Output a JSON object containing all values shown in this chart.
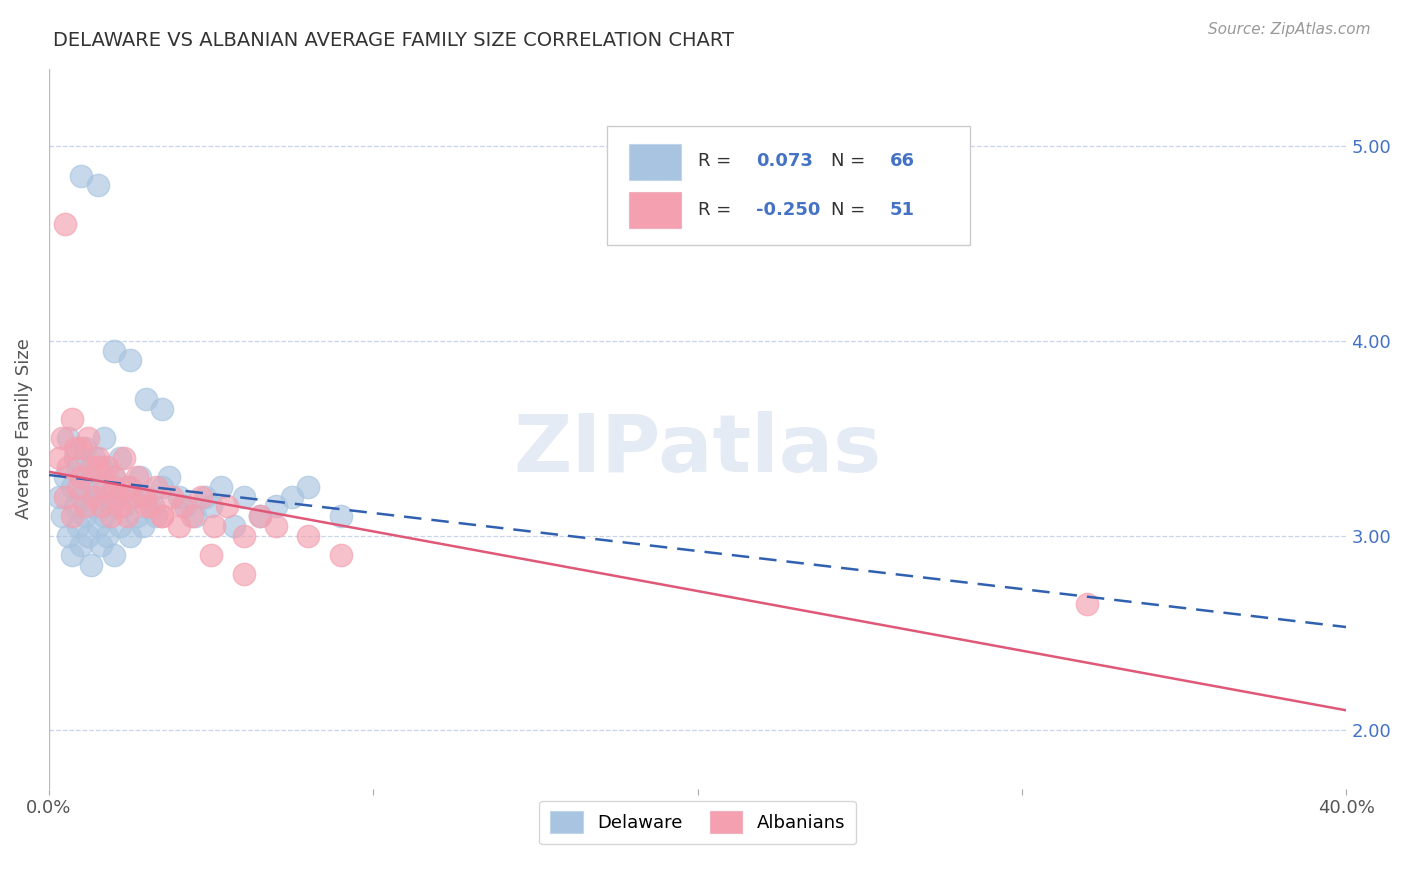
{
  "title": "DELAWARE VS ALBANIAN AVERAGE FAMILY SIZE CORRELATION CHART",
  "source": "Source: ZipAtlas.com",
  "ylabel": "Average Family Size",
  "xlim": [
    0.0,
    0.4
  ],
  "ylim": [
    1.7,
    5.4
  ],
  "yticks": [
    2.0,
    3.0,
    4.0,
    5.0
  ],
  "delaware_color": "#a8c4e0",
  "albanian_color": "#f4a0b0",
  "delaware_line_color": "#3060b0",
  "albanian_line_color": "#e05878",
  "R_delaware": 0.073,
  "N_delaware": 66,
  "R_albanian": -0.25,
  "N_albanian": 51,
  "watermark": "ZIPatlas",
  "background_color": "#ffffff",
  "grid_color": "#c8d4e8",
  "legend_edge_color": "#cccccc",
  "source_color": "#999999",
  "title_color": "#333333",
  "tick_color": "#4472c4",
  "ylabel_color": "#555555"
}
